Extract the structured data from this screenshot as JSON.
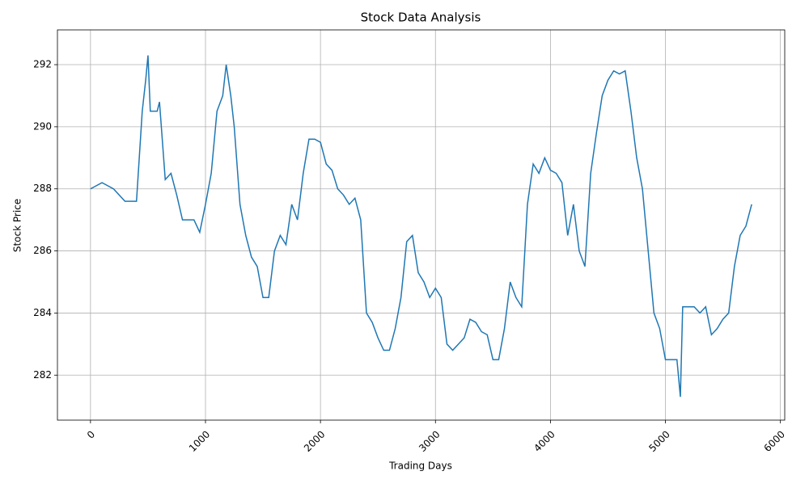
{
  "chart_data": {
    "type": "line",
    "title": "Stock Data Analysis",
    "x_label": "Trading Days",
    "y_label": "Stock Price",
    "x": [
      0,
      100,
      200,
      300,
      400,
      450,
      480,
      500,
      520,
      580,
      600,
      650,
      700,
      750,
      800,
      900,
      950,
      1000,
      1050,
      1100,
      1150,
      1180,
      1220,
      1250,
      1300,
      1350,
      1400,
      1450,
      1500,
      1550,
      1600,
      1650,
      1700,
      1750,
      1800,
      1850,
      1900,
      1950,
      2000,
      2050,
      2100,
      2150,
      2200,
      2250,
      2300,
      2350,
      2400,
      2450,
      2500,
      2550,
      2600,
      2650,
      2700,
      2750,
      2800,
      2850,
      2900,
      2950,
      3000,
      3050,
      3100,
      3150,
      3200,
      3250,
      3300,
      3350,
      3400,
      3450,
      3500,
      3550,
      3600,
      3650,
      3700,
      3750,
      3800,
      3850,
      3900,
      3950,
      4000,
      4050,
      4100,
      4150,
      4200,
      4250,
      4300,
      4350,
      4400,
      4450,
      4500,
      4550,
      4600,
      4650,
      4700,
      4750,
      4800,
      4850,
      4900,
      4950,
      5000,
      5050,
      5100,
      5130,
      5150,
      5200,
      5250,
      5300,
      5350,
      5400,
      5450,
      5500,
      5550,
      5600,
      5650,
      5700,
      5750
    ],
    "series": [
      {
        "name": "Stock Price",
        "color": "#1f77b4",
        "values": [
          288,
          288.2,
          288,
          287.6,
          287.6,
          290.5,
          291.5,
          292.3,
          290.5,
          290.5,
          290.8,
          288.3,
          288.5,
          287.8,
          287,
          287,
          286.6,
          287.5,
          288.5,
          290.5,
          291,
          292,
          291,
          290,
          287.5,
          286.5,
          285.8,
          285.5,
          284.5,
          284.5,
          286,
          286.5,
          286.2,
          287.5,
          287,
          288.5,
          289.6,
          289.6,
          289.5,
          288.8,
          288.6,
          288,
          287.8,
          287.5,
          287.7,
          287,
          284,
          283.7,
          283.2,
          282.8,
          282.8,
          283.5,
          284.5,
          286.3,
          286.5,
          285.3,
          285,
          284.5,
          284.8,
          284.5,
          283,
          282.8,
          283,
          283.2,
          283.8,
          283.7,
          283.4,
          283.3,
          282.5,
          282.5,
          283.5,
          285,
          284.5,
          284.2,
          287.5,
          288.8,
          288.5,
          289,
          288.6,
          288.5,
          288.2,
          286.5,
          287.5,
          286,
          285.5,
          288.5,
          289.8,
          291,
          291.5,
          291.8,
          291.7,
          291.8,
          290.5,
          289,
          288,
          286,
          284,
          283.5,
          282.5,
          282.5,
          282.5,
          281.3,
          284.2,
          284.2,
          284.2,
          284,
          284.2,
          283.3,
          283.5,
          283.8,
          284,
          285.5,
          286.5,
          286.8,
          287.5
        ]
      }
    ],
    "xlim": [
      -287.5,
      6037.5
    ],
    "ylim": [
      280.55,
      293.12
    ],
    "xticks": [
      0,
      1000,
      2000,
      3000,
      4000,
      5000,
      6000
    ],
    "yticks": [
      282,
      284,
      286,
      288,
      290,
      292
    ],
    "grid": true
  }
}
